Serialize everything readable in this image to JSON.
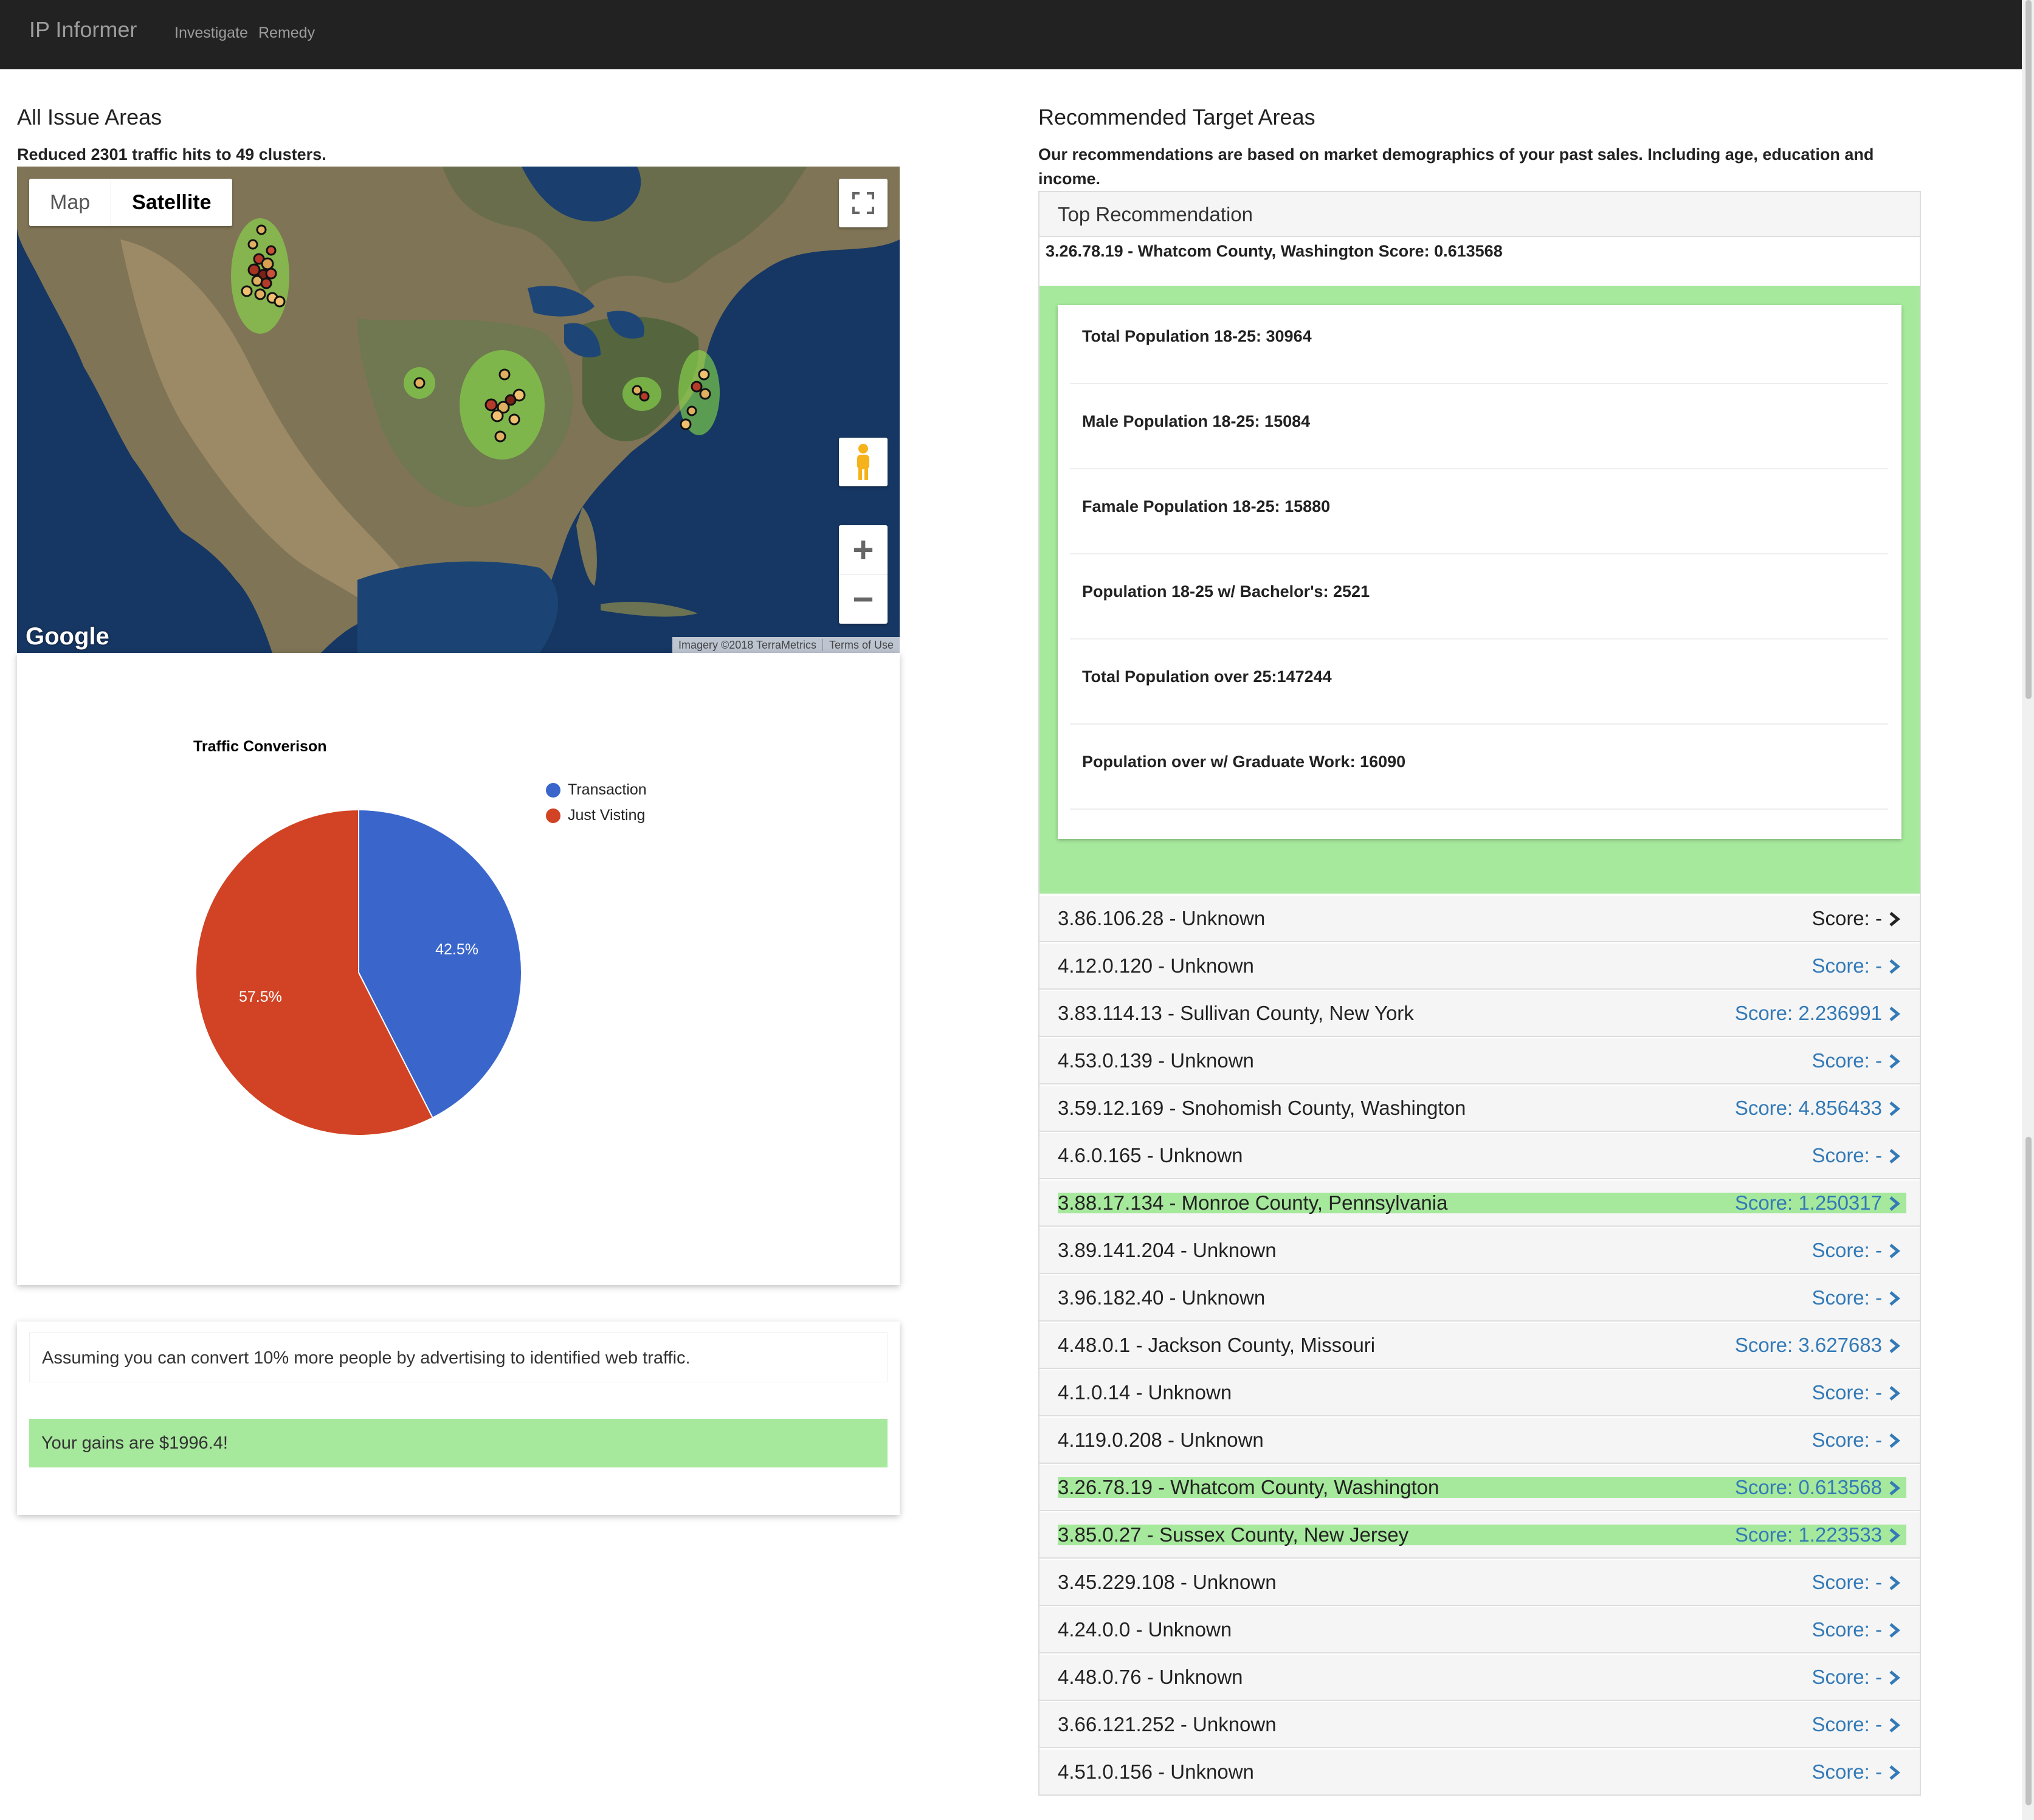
{
  "nav": {
    "brand": "IP Informer",
    "links": [
      "Investigate",
      "Remedy"
    ]
  },
  "left": {
    "title": "All Issue Areas",
    "subtitle": "Reduced 2301 traffic hits to 49 clusters.",
    "map": {
      "type_map": "Map",
      "type_satellite": "Satellite",
      "logo": "Google",
      "imagery": "Imagery ©2018 TerraMetrics",
      "terms": "Terms of Use",
      "zoom_in": "+",
      "zoom_out": "−"
    },
    "info_text": "Assuming you can convert 10% more people by advertising to identified web traffic.",
    "gains_text": "Your gains are $1996.4!"
  },
  "chart_data": {
    "type": "pie",
    "title": "Traffic Converison",
    "labels": [
      "Transaction",
      "Just Visting"
    ],
    "values": [
      42.5,
      57.5
    ],
    "value_labels": [
      "42.5%",
      "57.5%"
    ],
    "colors": [
      "#3a66cc",
      "#d14324"
    ],
    "legend_position": "right"
  },
  "right": {
    "title": "Recommended Target Areas",
    "subtitle": "Our recommendations are based on market demographics of your past sales. Including age, education and income.",
    "panel_heading": "Top Recommendation",
    "top_line": "3.26.78.19 - Whatcom County, Washington Score: 0.613568",
    "stats": [
      "Total Population 18-25: 30964",
      "Male Population 18-25: 15084",
      "Famale Population 18-25: 15880",
      "Population 18-25 w/ Bachelor's: 2521",
      "Total Population over 25:147244",
      "Population over w/ Graduate Work: 16090"
    ],
    "rows": [
      {
        "label": "3.86.106.28 - Unknown",
        "score": "Score: -"
      },
      {
        "label": "4.12.0.120 - Unknown",
        "score": "Score: -"
      },
      {
        "label": "3.83.114.13 - Sullivan County, New York",
        "score": "Score: 2.236991"
      },
      {
        "label": "4.53.0.139 - Unknown",
        "score": "Score: -"
      },
      {
        "label": "3.59.12.169 - Snohomish County, Washington",
        "score": "Score: 4.856433"
      },
      {
        "label": "4.6.0.165 - Unknown",
        "score": "Score: -"
      },
      {
        "label": "3.88.17.134 - Monroe County, Pennsylvania",
        "score": "Score: 1.250317"
      },
      {
        "label": "3.89.141.204 - Unknown",
        "score": "Score: -"
      },
      {
        "label": "3.96.182.40 - Unknown",
        "score": "Score: -"
      },
      {
        "label": "4.48.0.1 - Jackson County, Missouri",
        "score": "Score: 3.627683"
      },
      {
        "label": "4.1.0.14 - Unknown",
        "score": "Score: -"
      },
      {
        "label": "4.119.0.208 - Unknown",
        "score": "Score: -"
      },
      {
        "label": "3.26.78.19 - Whatcom County, Washington",
        "score": "Score: 0.613568"
      },
      {
        "label": "3.85.0.27 - Sussex County, New Jersey",
        "score": "Score: 1.223533"
      },
      {
        "label": "3.45.229.108 - Unknown",
        "score": "Score: -"
      },
      {
        "label": "4.24.0.0 - Unknown",
        "score": "Score: -"
      },
      {
        "label": "4.48.0.76 - Unknown",
        "score": "Score: -"
      },
      {
        "label": "3.66.121.252 - Unknown",
        "score": "Score: -"
      },
      {
        "label": "4.51.0.156 - Unknown",
        "score": "Score: -"
      }
    ]
  },
  "colors": {
    "highlight": "#a6e89c",
    "link": "#337ab7",
    "navbar": "#222222"
  }
}
